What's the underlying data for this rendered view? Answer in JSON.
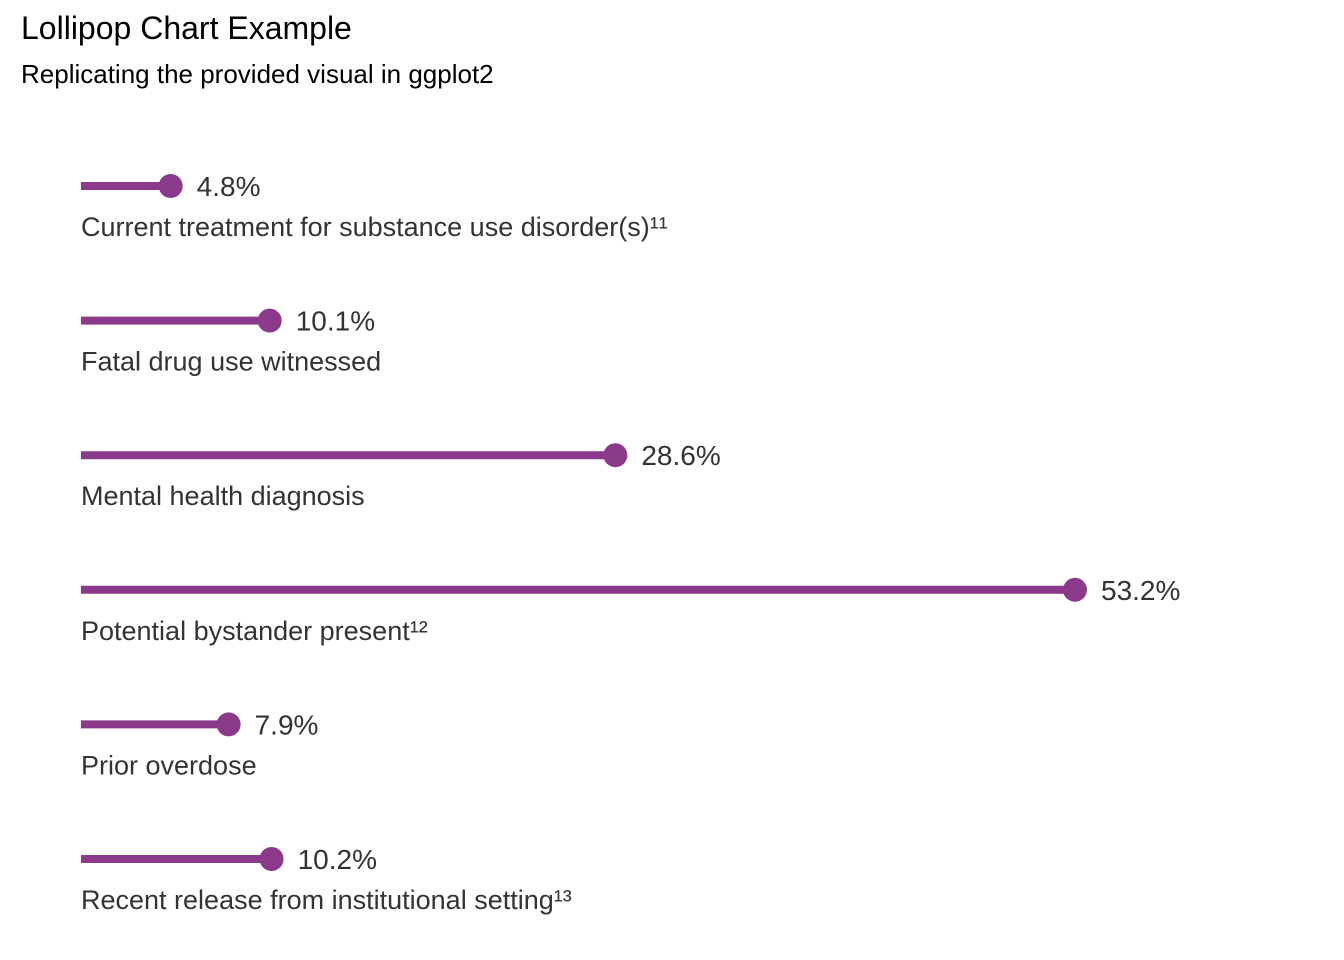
{
  "chart_data": {
    "type": "lollipop",
    "title": "Lollipop Chart Example",
    "subtitle": "Replicating the provided visual in ggplot2",
    "xlim": [
      0,
      53.2
    ],
    "grid": false,
    "legend": "none",
    "color": "#8B3A8B",
    "categories": [
      "Current treatment for substance use disorder(s)¹¹",
      "Fatal drug use witnessed",
      "Mental health diagnosis",
      "Potential bystander present¹²",
      "Prior overdose",
      "Recent release from institutional setting¹³"
    ],
    "values": [
      4.8,
      10.1,
      28.6,
      53.2,
      7.9,
      10.2
    ],
    "value_labels": [
      "4.8%",
      "10.1%",
      "28.6%",
      "53.2%",
      "7.9%",
      "10.2%"
    ]
  }
}
